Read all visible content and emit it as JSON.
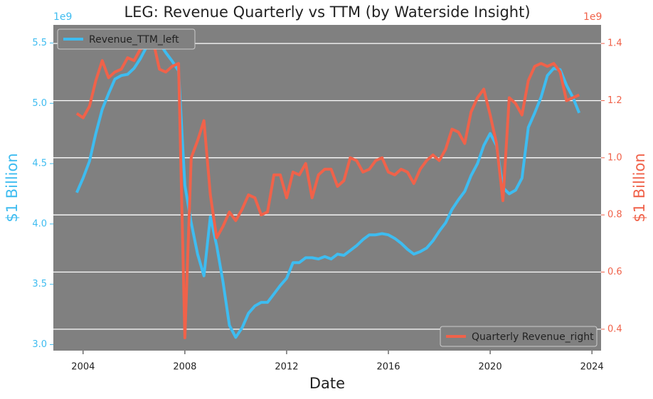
{
  "chart_data": {
    "type": "line",
    "title": "LEG: Revenue Quarterly vs TTM (by Waterside Insight)",
    "xlabel": "Date",
    "ylabel": "$1 Billion",
    "y2label": "$1 Billion",
    "y_offset_label": "1e9",
    "y2_offset_label": "1e9",
    "x": [
      2003.75,
      2004,
      2004.25,
      2004.5,
      2004.75,
      2005,
      2005.25,
      2005.5,
      2005.75,
      2006,
      2006.25,
      2006.5,
      2006.75,
      2007,
      2007.25,
      2007.5,
      2007.75,
      2008,
      2008.25,
      2008.5,
      2008.75,
      2009,
      2009.25,
      2009.5,
      2009.75,
      2010,
      2010.25,
      2010.5,
      2010.75,
      2011,
      2011.25,
      2011.5,
      2011.75,
      2012,
      2012.25,
      2012.5,
      2012.75,
      2013,
      2013.25,
      2013.5,
      2013.75,
      2014,
      2014.25,
      2014.5,
      2014.75,
      2015,
      2015.25,
      2015.5,
      2015.75,
      2016,
      2016.25,
      2016.5,
      2016.75,
      2017,
      2017.25,
      2017.5,
      2017.75,
      2018,
      2018.25,
      2018.5,
      2018.75,
      2019,
      2019.25,
      2019.5,
      2019.75,
      2020,
      2020.25,
      2020.5,
      2020.75,
      2021,
      2021.25,
      2021.5,
      2021.75,
      2022,
      2022.25,
      2022.5,
      2022.75,
      2023,
      2023.25,
      2023.5
    ],
    "series": [
      {
        "name": "Revenue_TTM_left",
        "color": "#3ebcf0",
        "axis": "y",
        "values": [
          4.26,
          4.38,
          4.52,
          4.75,
          4.95,
          5.08,
          5.2,
          5.23,
          5.24,
          5.29,
          5.37,
          5.47,
          5.51,
          5.5,
          5.42,
          5.35,
          5.27,
          4.32,
          4.01,
          3.75,
          3.57,
          4.06,
          3.82,
          3.52,
          3.16,
          3.06,
          3.14,
          3.26,
          3.32,
          3.35,
          3.35,
          3.42,
          3.49,
          3.55,
          3.68,
          3.68,
          3.72,
          3.72,
          3.71,
          3.73,
          3.71,
          3.75,
          3.74,
          3.78,
          3.82,
          3.87,
          3.91,
          3.91,
          3.92,
          3.91,
          3.88,
          3.84,
          3.79,
          3.75,
          3.77,
          3.8,
          3.86,
          3.94,
          4.01,
          4.12,
          4.2,
          4.27,
          4.4,
          4.5,
          4.65,
          4.75,
          4.65,
          4.3,
          4.25,
          4.28,
          4.38,
          4.8,
          4.92,
          5.05,
          5.23,
          5.29,
          5.28,
          5.15,
          5.05,
          4.92
        ]
      },
      {
        "name": "Quarterly Revenue_right",
        "color": "#f0624a",
        "axis": "y2",
        "values": [
          1.155,
          1.14,
          1.18,
          1.27,
          1.34,
          1.28,
          1.3,
          1.31,
          1.35,
          1.34,
          1.38,
          1.4,
          1.41,
          1.31,
          1.3,
          1.32,
          1.33,
          0.37,
          1.0,
          1.06,
          1.13,
          0.87,
          0.72,
          0.76,
          0.81,
          0.78,
          0.82,
          0.87,
          0.86,
          0.8,
          0.81,
          0.94,
          0.94,
          0.86,
          0.95,
          0.94,
          0.98,
          0.86,
          0.94,
          0.96,
          0.96,
          0.9,
          0.92,
          1.0,
          0.99,
          0.95,
          0.96,
          0.99,
          1.0,
          0.95,
          0.94,
          0.96,
          0.95,
          0.91,
          0.96,
          0.99,
          1.01,
          0.99,
          1.03,
          1.1,
          1.09,
          1.05,
          1.16,
          1.21,
          1.24,
          1.15,
          1.05,
          0.85,
          1.21,
          1.19,
          1.15,
          1.27,
          1.32,
          1.33,
          1.32,
          1.33,
          1.3,
          1.2,
          1.21,
          1.22
        ]
      }
    ],
    "xlim": [
      2002.83,
      2024.36
    ],
    "xticks": [
      2004,
      2008,
      2012,
      2016,
      2020,
      2024
    ],
    "ylim": [
      2.95,
      5.65
    ],
    "yticks": [
      {
        "value": 3,
        "label": "3.0"
      },
      3.5,
      {
        "value": 4,
        "label": "4.0"
      },
      4.5,
      {
        "value": 5,
        "label": "5.0"
      },
      5.5
    ],
    "y2lim": [
      0.325,
      1.465
    ],
    "y2ticks": [
      0.4,
      0.6,
      0.8,
      {
        "value": 1,
        "label": "1.0"
      },
      1.2,
      1.4
    ],
    "grid": "y2",
    "legend": [
      "upper left",
      "lower right"
    ],
    "background": "#808080"
  }
}
